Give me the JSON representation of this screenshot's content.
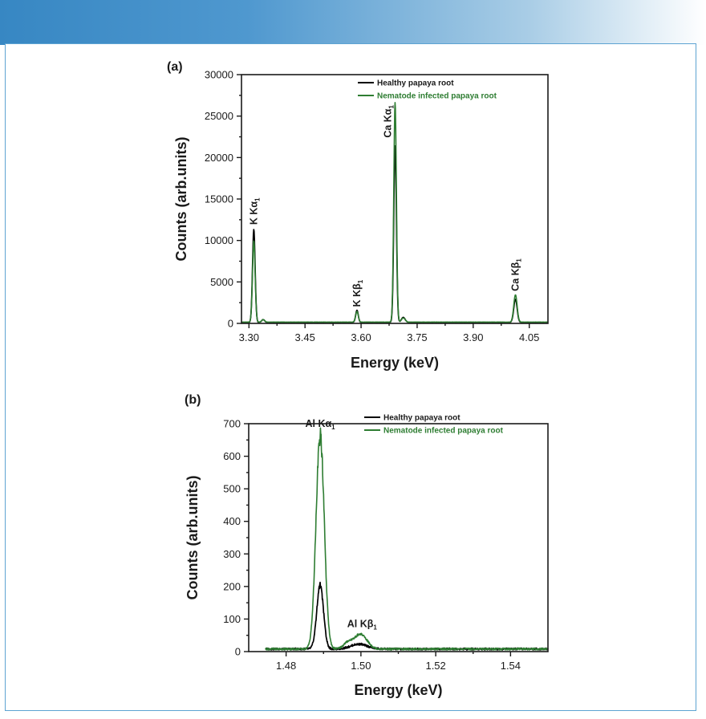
{
  "chart_data": [
    {
      "panel": "(a)",
      "type": "line",
      "xlabel": "Energy (keV)",
      "ylabel": "Counts (arb.units)",
      "xlim": [
        3.28,
        4.1
      ],
      "ylim": [
        0,
        30000
      ],
      "xticks": [
        3.3,
        3.45,
        3.6,
        3.75,
        3.9,
        4.05
      ],
      "xtick_labels": [
        "3.30",
        "3.45",
        "3.60",
        "3.75",
        "3.90",
        "4.05"
      ],
      "yticks": [
        0,
        5000,
        10000,
        15000,
        20000,
        25000,
        30000
      ],
      "ytick_labels": [
        "0",
        "5000",
        "10000",
        "15000",
        "20000",
        "25000",
        "30000"
      ],
      "legend_position": "top-right",
      "series": [
        {
          "name": "Healthy papaya root",
          "color": "#000000",
          "baseline": 120,
          "peaks": [
            {
              "x": 3.313,
              "height": 11200,
              "width": 0.0035
            },
            {
              "x": 3.338,
              "height": 350,
              "width": 0.004
            },
            {
              "x": 3.589,
              "height": 1450,
              "width": 0.0035
            },
            {
              "x": 3.691,
              "height": 21300,
              "width": 0.0035
            },
            {
              "x": 3.713,
              "height": 600,
              "width": 0.005
            },
            {
              "x": 4.013,
              "height": 2800,
              "width": 0.0045
            }
          ]
        },
        {
          "name": "Nematode infected papaya root",
          "color": "#2e7d32",
          "baseline": 150,
          "peaks": [
            {
              "x": 3.313,
              "height": 9800,
              "width": 0.0035
            },
            {
              "x": 3.338,
              "height": 300,
              "width": 0.004
            },
            {
              "x": 3.589,
              "height": 1300,
              "width": 0.0035
            },
            {
              "x": 3.691,
              "height": 26500,
              "width": 0.0035
            },
            {
              "x": 3.713,
              "height": 500,
              "width": 0.005
            },
            {
              "x": 4.013,
              "height": 3300,
              "width": 0.0045
            }
          ]
        }
      ],
      "annotations": [
        {
          "text": "K Kα",
          "sub": "1",
          "x": 3.313,
          "y": 11500
        },
        {
          "text": "K Kβ",
          "sub": "1",
          "x": 3.589,
          "y": 1600
        },
        {
          "text": "Ca Kα",
          "sub": "1",
          "x": 3.672,
          "y": 22000
        },
        {
          "text": "Ca Kβ",
          "sub": "1",
          "x": 4.013,
          "y": 3500
        }
      ]
    },
    {
      "panel": "(b)",
      "type": "line",
      "xlabel": "Energy (keV)",
      "ylabel": "Counts (arb.units)",
      "xlim": [
        1.47,
        1.55
      ],
      "ylim": [
        0,
        700
      ],
      "xticks": [
        1.48,
        1.5,
        1.52,
        1.54
      ],
      "xtick_labels": [
        "1.48",
        "1.50",
        "1.52",
        "1.54"
      ],
      "yticks": [
        0,
        100,
        200,
        300,
        400,
        500,
        600,
        700
      ],
      "ytick_labels": [
        "0",
        "100",
        "200",
        "300",
        "400",
        "500",
        "600",
        "700"
      ],
      "legend_position": "top-right",
      "series": [
        {
          "name": "Healthy papaya root",
          "color": "#000000",
          "x_start": 1.4745,
          "baseline": 8,
          "peaks": [
            {
              "x": 1.4891,
              "height": 195,
              "width": 0.0009
            },
            {
              "x": 1.4995,
              "height": 15,
              "width": 0.0022
            }
          ]
        },
        {
          "name": "Nematode infected papaya root",
          "color": "#2e7d32",
          "x_start": 1.4745,
          "baseline": 8,
          "peaks": [
            {
              "x": 1.4891,
              "height": 655,
              "width": 0.0011
            },
            {
              "x": 1.4999,
              "height": 45,
              "width": 0.0017
            },
            {
              "x": 1.4965,
              "height": 18,
              "width": 0.0012
            }
          ]
        }
      ],
      "annotations": [
        {
          "text": "Al Kα",
          "sub": "1",
          "x": 1.4891,
          "y": 690
        },
        {
          "text": "Al Kβ",
          "sub": "1",
          "x": 1.5003,
          "y": 75
        }
      ]
    }
  ]
}
